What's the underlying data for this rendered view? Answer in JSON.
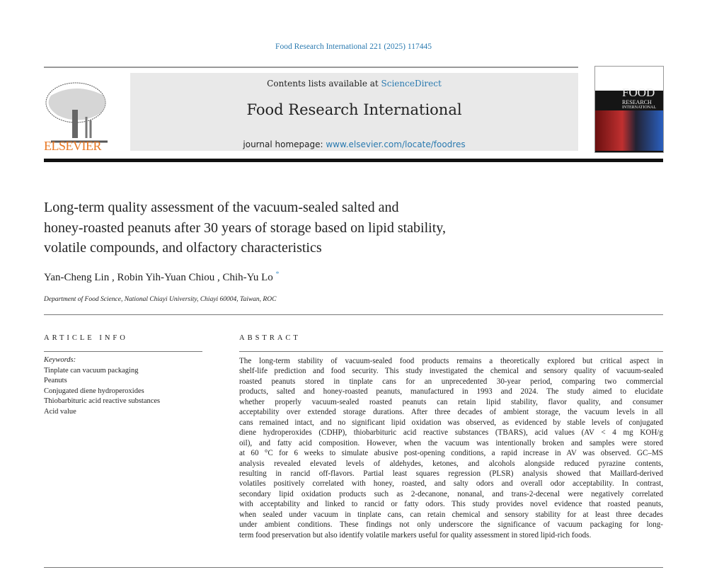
{
  "citation": "Food Research International 221 (2025) 117445",
  "banner": {
    "contents_prefix": "Contents lists available at ",
    "contents_link": "ScienceDirect",
    "journal": "Food Research International",
    "homepage_prefix": "journal homepage: ",
    "homepage_link": "www.elsevier.com/locate/foodres"
  },
  "publisher_logo": "ELSEVIER",
  "cover": {
    "line1": "FOOD",
    "line2": "RESEARCH",
    "line3": "INTERNATIONAL"
  },
  "title_lines": [
    "Long-term quality assessment of the vacuum-sealed salted and",
    "honey-roasted peanuts after 30 years of storage based on lipid stability,",
    "volatile compounds, and olfactory characteristics"
  ],
  "authors": "Yan-Cheng Lin , Robin Yih-Yuan Chiou , Chih-Yu Lo",
  "corresponding_mark": "*",
  "affiliation": "Department of Food Science, National Chiayi University, Chiayi 60004, Taiwan, ROC",
  "article_info": {
    "heading": "ARTICLE INFO",
    "keywords_label": "Keywords:",
    "keywords": [
      "Tinplate can vacuum packaging",
      "Peanuts",
      "Conjugated diene hydroperoxides",
      "Thiobarbituric acid reactive substances",
      "Acid value"
    ]
  },
  "abstract": {
    "heading": "ABSTRACT",
    "lines": [
      "The long-term stability of vacuum-sealed food products remains a theoretically explored but critical aspect in",
      "shelf-life prediction and food security. This study investigated the chemical and sensory quality of vacuum-sealed",
      "roasted peanuts stored in tinplate cans for an unprecedented 30-year period, comparing two commercial",
      "products, salted and honey-roasted peanuts, manufactured in 1993 and 2024. The study aimed to elucidate",
      "whether properly vacuum-sealed roasted peanuts can retain lipid stability, flavor quality, and consumer",
      "acceptability over extended storage durations. After three decades of ambient storage, the vacuum levels in all",
      "cans remained intact, and no significant lipid oxidation was observed, as evidenced by stable levels of conjugated",
      "diene hydroperoxides (CDHP), thiobarbituric acid reactive substances (TBARS), acid values (AV < 4 mg KOH/g",
      "oil), and fatty acid composition. However, when the vacuum was intentionally broken and samples were stored",
      "at 60 °C for 6 weeks to simulate abusive post-opening conditions, a rapid increase in AV was observed. GC–MS",
      "analysis revealed elevated levels of aldehydes, ketones, and alcohols alongside reduced pyrazine contents,",
      "resulting in rancid off-flavors. Partial least squares regression (PLSR) analysis showed that Maillard-derived",
      "volatiles positively correlated with honey, roasted, and salty odors and overall odor acceptability. In contrast,",
      "secondary lipid oxidation products such as 2-decanone, nonanal, and trans-2-decenal were negatively correlated",
      "with acceptability and linked to rancid or fatty odors. This study provides novel evidence that roasted peanuts,",
      "when sealed under vacuum in tinplate cans, can retain chemical and sensory stability for at least three decades",
      "under ambient conditions. These findings not only underscore the significance of vacuum packaging for long-",
      "term food preservation but also identify volatile markers useful for quality assessment in stored lipid-rich foods."
    ]
  }
}
